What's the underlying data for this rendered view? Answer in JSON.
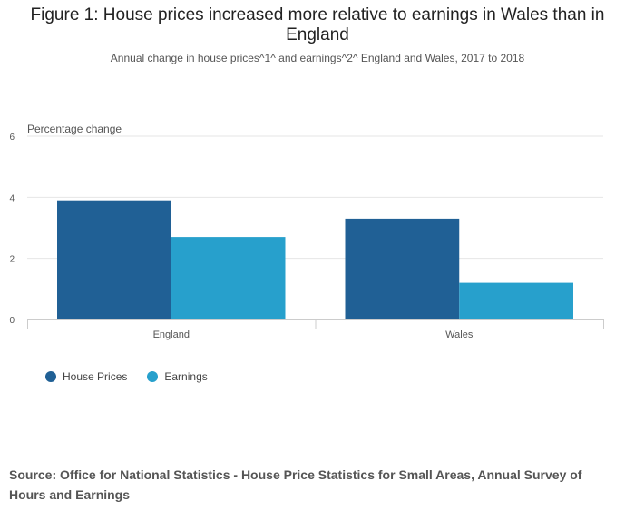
{
  "title": "Figure 1: House prices increased more relative to earnings in Wales than in England",
  "subtitle": "Annual change in house prices^1^ and earnings^2^ England and Wales, 2017 to 2018",
  "source": "Source: Office for National Statistics - House Price Statistics for Small Areas, Annual Survey of Hours and Earnings",
  "colors": {
    "house_prices": "#206095",
    "earnings": "#27a0cc",
    "grid": "#e6e6e6",
    "axis": "#cccccc",
    "tick_text": "#555555"
  },
  "chart_data": {
    "type": "bar",
    "categories": [
      "England",
      "Wales"
    ],
    "series": [
      {
        "name": "House Prices",
        "values": [
          3.9,
          3.3
        ]
      },
      {
        "name": "Earnings",
        "values": [
          2.7,
          1.2
        ]
      }
    ],
    "ylabel": "Percentage change",
    "ylim": [
      0,
      6
    ],
    "yticks": [
      "0",
      "2",
      "4",
      "6"
    ],
    "grid": true,
    "legend_position": "bottom-left"
  }
}
